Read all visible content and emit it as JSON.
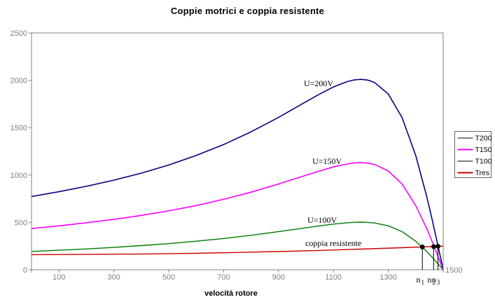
{
  "title": "Coppie motrici e coppia resistente",
  "colors": {
    "axis": "#808080",
    "tick_label": "#808080",
    "title_text": "#000000",
    "marker": "#000000",
    "legend_border": "#666666"
  },
  "chart_data": {
    "type": "line",
    "title": "Coppie motrici e coppia resistente",
    "xlabel": "velocità rotore",
    "ylabel": "",
    "xlim": [
      0,
      1500
    ],
    "ylim": [
      0,
      2500
    ],
    "grid": false,
    "x_ticks": [
      100,
      300,
      500,
      700,
      900,
      1100,
      1300
    ],
    "x_end_label": "1500",
    "y_ticks": [
      0,
      500,
      1000,
      1500,
      2000,
      2500
    ],
    "series": [
      {
        "name": "T200",
        "color": "#000080",
        "width": 1.6,
        "points": [
          [
            0,
            773
          ],
          [
            100,
            824
          ],
          [
            200,
            881
          ],
          [
            300,
            946
          ],
          [
            400,
            1020
          ],
          [
            500,
            1106
          ],
          [
            600,
            1206
          ],
          [
            700,
            1322
          ],
          [
            800,
            1456
          ],
          [
            900,
            1608
          ],
          [
            1000,
            1774
          ],
          [
            1050,
            1855
          ],
          [
            1100,
            1930
          ],
          [
            1150,
            1986
          ],
          [
            1175,
            2004
          ],
          [
            1200,
            2010
          ],
          [
            1225,
            2002
          ],
          [
            1250,
            1977
          ],
          [
            1300,
            1855
          ],
          [
            1350,
            1608
          ],
          [
            1400,
            1206
          ],
          [
            1440,
            773
          ],
          [
            1460,
            527
          ],
          [
            1475,
            333
          ],
          [
            1490,
            134
          ],
          [
            1500,
            0
          ]
        ]
      },
      {
        "name": "T150",
        "color": "#ff00ff",
        "width": 1.6,
        "points": [
          [
            0,
            435
          ],
          [
            100,
            464
          ],
          [
            200,
            496
          ],
          [
            300,
            532
          ],
          [
            400,
            574
          ],
          [
            500,
            622
          ],
          [
            600,
            678
          ],
          [
            700,
            744
          ],
          [
            800,
            819
          ],
          [
            900,
            905
          ],
          [
            1000,
            998
          ],
          [
            1050,
            1043
          ],
          [
            1100,
            1086
          ],
          [
            1150,
            1117
          ],
          [
            1175,
            1127
          ],
          [
            1200,
            1131
          ],
          [
            1225,
            1126
          ],
          [
            1250,
            1112
          ],
          [
            1300,
            1043
          ],
          [
            1350,
            905
          ],
          [
            1400,
            678
          ],
          [
            1440,
            435
          ],
          [
            1460,
            296
          ],
          [
            1475,
            187
          ],
          [
            1490,
            75
          ],
          [
            1500,
            0
          ]
        ]
      },
      {
        "name": "T100",
        "color": "#007a00",
        "width": 1.4,
        "points": [
          [
            0,
            193
          ],
          [
            100,
            206
          ],
          [
            200,
            220
          ],
          [
            300,
            236
          ],
          [
            400,
            255
          ],
          [
            500,
            276
          ],
          [
            600,
            302
          ],
          [
            700,
            330
          ],
          [
            800,
            364
          ],
          [
            900,
            402
          ],
          [
            1000,
            443
          ],
          [
            1050,
            464
          ],
          [
            1100,
            482
          ],
          [
            1150,
            496
          ],
          [
            1175,
            501
          ],
          [
            1200,
            503
          ],
          [
            1225,
            500
          ],
          [
            1250,
            494
          ],
          [
            1300,
            464
          ],
          [
            1350,
            402
          ],
          [
            1400,
            302
          ],
          [
            1440,
            193
          ],
          [
            1460,
            132
          ],
          [
            1475,
            83
          ],
          [
            1490,
            33
          ],
          [
            1500,
            0
          ]
        ]
      },
      {
        "name": "Tres",
        "color": "#cc0000",
        "width": 1.4,
        "points": [
          [
            0,
            160
          ],
          [
            150,
            161
          ],
          [
            300,
            164
          ],
          [
            450,
            168
          ],
          [
            600,
            174
          ],
          [
            750,
            183
          ],
          [
            900,
            192
          ],
          [
            1050,
            204
          ],
          [
            1200,
            218
          ],
          [
            1350,
            233
          ],
          [
            1500,
            250
          ]
        ]
      }
    ],
    "annotations": [
      {
        "text": "U=200V",
        "x": 1046,
        "y": 1938
      },
      {
        "text": "U=150V",
        "x": 1077,
        "y": 1117
      },
      {
        "text": "U=100V",
        "x": 1059,
        "y": 496
      },
      {
        "text": "coppia resistente",
        "x": 1100,
        "y": 251
      }
    ],
    "markers": [
      {
        "label": "n",
        "sub": "1",
        "x": 1424,
        "y": 241
      },
      {
        "label": "n",
        "sub": "2",
        "x": 1465,
        "y": 245
      },
      {
        "label": "n",
        "sub": "3",
        "x": 1481,
        "y": 248
      }
    ],
    "legend": {
      "position": "right",
      "entries": [
        {
          "label": "T200",
          "swatch": "#808080"
        },
        {
          "label": "T150",
          "swatch": "#ff00ff"
        },
        {
          "label": "T100",
          "swatch": "#808080"
        },
        {
          "label": "Tres",
          "swatch": "#cc0000"
        }
      ]
    }
  }
}
